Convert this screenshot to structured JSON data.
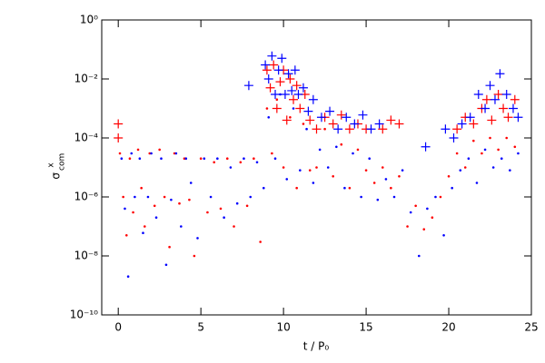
{
  "chart_data": {
    "type": "scatter",
    "log_y": true,
    "x_label": "t / P₀",
    "y_label": "σ",
    "y_label_sup": "x",
    "y_label_sub": "com",
    "xlim": [
      -1,
      25
    ],
    "xticks": [
      0,
      5,
      10,
      15,
      20,
      25
    ],
    "ylim": [
      1e-10,
      1
    ],
    "yticks": [
      {
        "value": 1e-10,
        "label": "10⁻¹⁰"
      },
      {
        "value": 1e-08,
        "label": "10⁻⁸"
      },
      {
        "value": 1e-06,
        "label": "10⁻⁶"
      },
      {
        "value": 0.0001,
        "label": "10⁻⁴"
      },
      {
        "value": 0.01,
        "label": "10⁻²"
      },
      {
        "value": 1,
        "label": "10⁰"
      }
    ],
    "series": [
      {
        "color": "#ff0000",
        "marker": "dot",
        "x": [
          0.1,
          0.3,
          0.5,
          0.7,
          0.9,
          1.2,
          1.4,
          1.6,
          1.9,
          2.2,
          2.5,
          2.8,
          3.1,
          3.4,
          3.7,
          4.0,
          4.3,
          4.6,
          5.0,
          5.4,
          5.8,
          6.2,
          6.6,
          7.0,
          7.4,
          7.8,
          8.2,
          8.6,
          9.0,
          9.3,
          9.6,
          10.0,
          10.4,
          10.8,
          11.2,
          11.6,
          12.0,
          12.5,
          13.0,
          13.5,
          14.0,
          14.5,
          15.0,
          15.5,
          16.0,
          16.5,
          17.0,
          17.5,
          18.0,
          18.5,
          19.0,
          19.5,
          20.0,
          20.5,
          21.0,
          21.5,
          22.0,
          22.5,
          23.0,
          23.5,
          24.0
        ],
        "values": [
          3e-05,
          1e-06,
          5e-08,
          2e-05,
          3e-07,
          4e-05,
          2e-06,
          1e-07,
          3e-05,
          5e-07,
          4e-05,
          1e-06,
          2e-08,
          3e-05,
          6e-07,
          2e-05,
          8e-07,
          1e-08,
          2e-05,
          3e-07,
          1.5e-05,
          4e-07,
          2e-05,
          1e-07,
          1.5e-05,
          5e-07,
          2e-05,
          3e-08,
          0.001,
          3e-05,
          0.002,
          1e-05,
          0.0005,
          2e-06,
          0.0003,
          8e-06,
          1e-05,
          0.0002,
          5e-06,
          6e-05,
          2e-06,
          4e-05,
          8e-06,
          3e-06,
          1e-05,
          2e-06,
          5e-06,
          1e-07,
          5e-07,
          8e-08,
          2e-07,
          1e-06,
          5e-06,
          3e-05,
          1e-05,
          8e-05,
          3e-05,
          0.0001,
          4e-05,
          0.0001,
          5e-05
        ]
      },
      {
        "color": "#0000ff",
        "marker": "dot",
        "x": [
          0.2,
          0.4,
          0.6,
          0.8,
          1.0,
          1.3,
          1.5,
          1.8,
          2.0,
          2.3,
          2.6,
          2.9,
          3.2,
          3.5,
          3.8,
          4.1,
          4.4,
          4.8,
          5.2,
          5.6,
          6.0,
          6.4,
          6.8,
          7.2,
          7.6,
          8.0,
          8.4,
          8.8,
          9.1,
          9.5,
          9.8,
          10.2,
          10.6,
          11.0,
          11.4,
          11.8,
          12.2,
          12.7,
          13.2,
          13.7,
          14.2,
          14.7,
          15.2,
          15.7,
          16.2,
          16.7,
          17.2,
          17.7,
          18.2,
          18.7,
          19.2,
          19.7,
          20.2,
          20.7,
          21.2,
          21.7,
          22.2,
          22.7,
          23.2,
          23.7,
          24.2
        ],
        "values": [
          2e-05,
          4e-07,
          2e-09,
          3e-05,
          1e-06,
          2e-05,
          6e-08,
          1e-06,
          3e-05,
          2e-07,
          2e-05,
          5e-09,
          8e-07,
          3e-05,
          1e-07,
          2e-05,
          3e-06,
          4e-08,
          2e-05,
          1e-06,
          2e-05,
          2e-07,
          1e-05,
          6e-07,
          2e-05,
          1e-06,
          1.5e-05,
          2e-06,
          0.0005,
          2e-05,
          0.003,
          4e-06,
          0.001,
          8e-06,
          0.0002,
          3e-06,
          4e-05,
          1e-05,
          5e-05,
          2e-06,
          3e-05,
          1e-06,
          2e-05,
          8e-07,
          4e-06,
          1e-06,
          8e-06,
          3e-07,
          1e-08,
          4e-07,
          1e-06,
          5e-08,
          2e-06,
          8e-06,
          2e-05,
          3e-06,
          4e-05,
          1e-05,
          2e-05,
          8e-06,
          3e-05
        ]
      },
      {
        "color": "#ff0000",
        "marker": "plus",
        "x": [
          0.0,
          0.0,
          9.0,
          9.2,
          9.4,
          9.6,
          9.8,
          10.0,
          10.2,
          10.4,
          10.6,
          10.8,
          11.0,
          11.3,
          11.6,
          12.0,
          12.5,
          13.0,
          13.5,
          14.0,
          14.5,
          15.0,
          16.0,
          16.5,
          17.0,
          20.5,
          21.0,
          21.5,
          22.0,
          22.3,
          22.6,
          23.0,
          23.3,
          23.6,
          24.0
        ],
        "values": [
          0.0003,
          0.0001,
          0.02,
          0.005,
          0.03,
          0.001,
          0.008,
          0.02,
          0.0004,
          0.01,
          0.002,
          0.006,
          0.001,
          0.003,
          0.0004,
          0.0002,
          0.0005,
          0.0003,
          0.0006,
          0.0002,
          0.0003,
          0.0002,
          0.0002,
          0.0004,
          0.0003,
          0.0002,
          0.0005,
          0.0003,
          0.001,
          0.002,
          0.0004,
          0.003,
          0.001,
          0.0005,
          0.002
        ]
      },
      {
        "color": "#0000ff",
        "marker": "plus",
        "x": [
          7.9,
          8.9,
          9.1,
          9.3,
          9.5,
          9.7,
          9.9,
          10.1,
          10.3,
          10.5,
          10.7,
          10.9,
          11.2,
          11.5,
          11.8,
          12.3,
          12.8,
          13.3,
          13.8,
          14.3,
          14.8,
          15.3,
          15.8,
          18.6,
          19.8,
          20.3,
          20.8,
          21.3,
          21.8,
          22.2,
          22.5,
          22.8,
          23.1,
          23.5,
          23.9,
          24.2
        ],
        "values": [
          0.006,
          0.03,
          0.01,
          0.06,
          0.003,
          0.02,
          0.05,
          0.003,
          0.015,
          0.004,
          0.02,
          0.003,
          0.005,
          0.0008,
          0.002,
          0.0005,
          0.0008,
          0.0002,
          0.0005,
          0.0003,
          0.0006,
          0.0002,
          0.0003,
          5e-05,
          0.0002,
          0.0001,
          0.0003,
          0.0005,
          0.003,
          0.001,
          0.006,
          0.002,
          0.015,
          0.003,
          0.001,
          0.0005
        ]
      }
    ]
  }
}
